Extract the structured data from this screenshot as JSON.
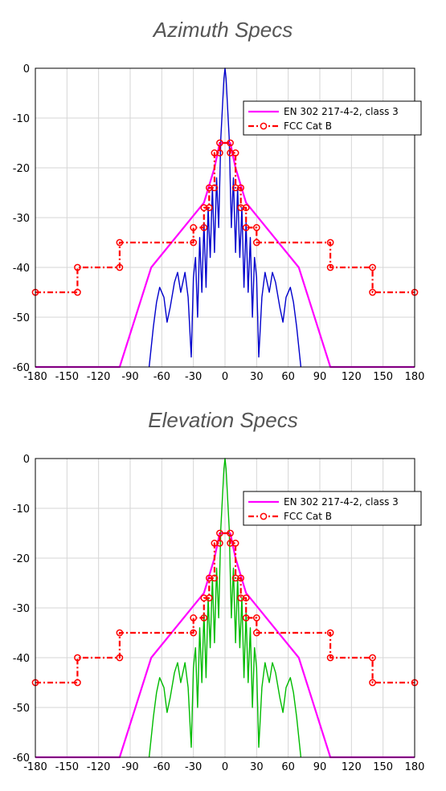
{
  "chart_data": [
    {
      "type": "line",
      "title": "Azimuth Specs",
      "xlim": [
        -180,
        180
      ],
      "ylim": [
        -60,
        0
      ],
      "xticks": [
        -180,
        -150,
        -120,
        -90,
        -60,
        -30,
        0,
        30,
        60,
        90,
        120,
        150,
        180
      ],
      "yticks": [
        0,
        -10,
        -20,
        -30,
        -40,
        -50,
        -60
      ],
      "grid": true,
      "legend_position": "top-right",
      "series": [
        {
          "name": "EN 302 217-4-2, class 3",
          "color": "#ff00ff",
          "x": [
            -180,
            -100,
            -70,
            -20,
            -10,
            -5,
            5,
            10,
            20,
            70,
            100,
            180
          ],
          "y": [
            -60,
            -60,
            -40,
            -27,
            -20,
            -15,
            -15,
            -20,
            -27,
            -40,
            -60,
            -60
          ]
        },
        {
          "name": "FCC Cat B",
          "color": "#ff0000",
          "x": [
            -180,
            -140,
            -140,
            -100,
            -100,
            -30,
            -30,
            -20,
            -20,
            -15,
            -15,
            -10,
            -10,
            -5,
            -5,
            5,
            5,
            10,
            10,
            15,
            15,
            20,
            20,
            30,
            30,
            100,
            100,
            140,
            140,
            180
          ],
          "y": [
            -45,
            -45,
            -40,
            -40,
            -35,
            -35,
            -32,
            -32,
            -28,
            -28,
            -24,
            -24,
            -17,
            -17,
            -15,
            -15,
            -17,
            -17,
            -24,
            -24,
            -28,
            -28,
            -32,
            -32,
            -35,
            -35,
            -40,
            -40,
            -45,
            -45
          ]
        },
        {
          "name": "",
          "color": "#0000cc",
          "x": [
            -72,
            -68,
            -65,
            -62,
            -58,
            -55,
            -52,
            -48,
            -45,
            -42,
            -38,
            -35,
            -32,
            -30,
            -28,
            -26,
            -24,
            -22,
            -20,
            -18,
            -16,
            -14,
            -12,
            -10,
            -8,
            -6,
            -4,
            -2,
            -1,
            0,
            1,
            2,
            4,
            6,
            8,
            10,
            12,
            14,
            16,
            18,
            20,
            22,
            24,
            26,
            28,
            30,
            32,
            35,
            38,
            42,
            45,
            48,
            52,
            55,
            58,
            62,
            65,
            68,
            72
          ],
          "y": [
            -60,
            -52,
            -47,
            -44,
            -46,
            -51,
            -48,
            -43,
            -41,
            -45,
            -41,
            -46,
            -58,
            -42,
            -38,
            -50,
            -34,
            -45,
            -31,
            -44,
            -28,
            -38,
            -24,
            -37,
            -22,
            -32,
            -14,
            -6,
            -2,
            0,
            -2,
            -6,
            -14,
            -32,
            -22,
            -37,
            -24,
            -38,
            -28,
            -44,
            -31,
            -45,
            -34,
            -50,
            -38,
            -42,
            -58,
            -46,
            -41,
            -45,
            -41,
            -43,
            -48,
            -51,
            -46,
            -44,
            -47,
            -52,
            -60
          ]
        }
      ]
    },
    {
      "type": "line",
      "title": "Elevation Specs",
      "xlim": [
        -180,
        180
      ],
      "ylim": [
        -60,
        0
      ],
      "xticks": [
        -180,
        -150,
        -120,
        -90,
        -60,
        -30,
        0,
        30,
        60,
        90,
        120,
        150,
        180
      ],
      "yticks": [
        0,
        -10,
        -20,
        -30,
        -40,
        -50,
        -60
      ],
      "grid": true,
      "legend_position": "top-right",
      "series": [
        {
          "name": "EN 302 217-4-2, class 3",
          "color": "#ff00ff",
          "x": [
            -180,
            -100,
            -70,
            -20,
            -10,
            -5,
            5,
            10,
            20,
            70,
            100,
            180
          ],
          "y": [
            -60,
            -60,
            -40,
            -27,
            -20,
            -15,
            -15,
            -20,
            -27,
            -40,
            -60,
            -60
          ]
        },
        {
          "name": "FCC Cat B",
          "color": "#ff0000",
          "x": [
            -180,
            -140,
            -140,
            -100,
            -100,
            -30,
            -30,
            -20,
            -20,
            -15,
            -15,
            -10,
            -10,
            -5,
            -5,
            5,
            5,
            10,
            10,
            15,
            15,
            20,
            20,
            30,
            30,
            100,
            100,
            140,
            140,
            180
          ],
          "y": [
            -45,
            -45,
            -40,
            -40,
            -35,
            -35,
            -32,
            -32,
            -28,
            -28,
            -24,
            -24,
            -17,
            -17,
            -15,
            -15,
            -17,
            -17,
            -24,
            -24,
            -28,
            -28,
            -32,
            -32,
            -35,
            -35,
            -40,
            -40,
            -45,
            -45
          ]
        },
        {
          "name": "",
          "color": "#00bb00",
          "x": [
            -72,
            -68,
            -65,
            -62,
            -58,
            -55,
            -52,
            -48,
            -45,
            -42,
            -38,
            -35,
            -32,
            -30,
            -28,
            -26,
            -24,
            -22,
            -20,
            -18,
            -16,
            -14,
            -12,
            -10,
            -8,
            -6,
            -4,
            -2,
            -1,
            0,
            1,
            2,
            4,
            6,
            8,
            10,
            12,
            14,
            16,
            18,
            20,
            22,
            24,
            26,
            28,
            30,
            32,
            35,
            38,
            42,
            45,
            48,
            52,
            55,
            58,
            62,
            65,
            68,
            72
          ],
          "y": [
            -60,
            -52,
            -47,
            -44,
            -46,
            -51,
            -48,
            -43,
            -41,
            -45,
            -41,
            -46,
            -58,
            -42,
            -38,
            -50,
            -34,
            -45,
            -31,
            -44,
            -28,
            -38,
            -24,
            -37,
            -22,
            -32,
            -14,
            -6,
            -2,
            0,
            -2,
            -6,
            -14,
            -32,
            -22,
            -37,
            -24,
            -38,
            -28,
            -44,
            -31,
            -45,
            -34,
            -50,
            -38,
            -42,
            -58,
            -46,
            -41,
            -45,
            -41,
            -43,
            -48,
            -51,
            -46,
            -44,
            -47,
            -52,
            -60
          ]
        }
      ]
    }
  ]
}
